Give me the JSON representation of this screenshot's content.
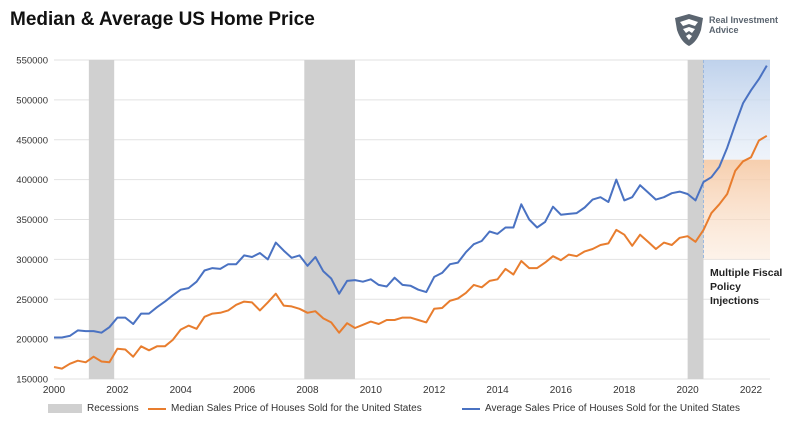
{
  "chart_data": {
    "type": "line",
    "title": "Median & Average US Home Price",
    "brand": "Real Investment Advice",
    "xlim": [
      2000,
      2022.6
    ],
    "ylim": [
      150000,
      550000
    ],
    "x_ticks": [
      2000,
      2002,
      2004,
      2006,
      2008,
      2010,
      2012,
      2014,
      2016,
      2018,
      2020,
      2022
    ],
    "y_ticks": [
      150000,
      200000,
      250000,
      300000,
      350000,
      400000,
      450000,
      500000,
      550000
    ],
    "recessions": [
      {
        "start": 2001.1,
        "end": 2001.9
      },
      {
        "start": 2007.9,
        "end": 2009.5
      },
      {
        "start": 2020.0,
        "end": 2020.5
      }
    ],
    "annotation": "Multiple Fiscal Policy Injections",
    "highlight_start": 2020.5,
    "legend": [
      {
        "label": "Recessions",
        "color": "#d0d0d0",
        "kind": "box"
      },
      {
        "label": "Median Sales Price of Houses Sold for the United States",
        "color": "#e87d2e",
        "kind": "line"
      },
      {
        "label": "Average Sales Price of Houses Sold for the United States",
        "color": "#4a72c2",
        "kind": "line"
      }
    ],
    "series": [
      {
        "name": "Median Sales Price of Houses Sold for the United States",
        "color": "#e87d2e",
        "x": [
          2000.0,
          2000.25,
          2000.5,
          2000.75,
          2001.0,
          2001.25,
          2001.5,
          2001.75,
          2002.0,
          2002.25,
          2002.5,
          2002.75,
          2003.0,
          2003.25,
          2003.5,
          2003.75,
          2004.0,
          2004.25,
          2004.5,
          2004.75,
          2005.0,
          2005.25,
          2005.5,
          2005.75,
          2006.0,
          2006.25,
          2006.5,
          2006.75,
          2007.0,
          2007.25,
          2007.5,
          2007.75,
          2008.0,
          2008.25,
          2008.5,
          2008.75,
          2009.0,
          2009.25,
          2009.5,
          2009.75,
          2010.0,
          2010.25,
          2010.5,
          2010.75,
          2011.0,
          2011.25,
          2011.5,
          2011.75,
          2012.0,
          2012.25,
          2012.5,
          2012.75,
          2013.0,
          2013.25,
          2013.5,
          2013.75,
          2014.0,
          2014.25,
          2014.5,
          2014.75,
          2015.0,
          2015.25,
          2015.5,
          2015.75,
          2016.0,
          2016.25,
          2016.5,
          2016.75,
          2017.0,
          2017.25,
          2017.5,
          2017.75,
          2018.0,
          2018.25,
          2018.5,
          2018.75,
          2019.0,
          2019.25,
          2019.5,
          2019.75,
          2020.0,
          2020.25,
          2020.5,
          2020.75,
          2021.0,
          2021.25,
          2021.5,
          2021.75,
          2022.0,
          2022.25,
          2022.5
        ],
        "y": [
          165000,
          163000,
          169000,
          173000,
          171000,
          178000,
          172000,
          171000,
          188000,
          187000,
          178000,
          191000,
          186000,
          191000,
          191000,
          199000,
          212000,
          217000,
          213000,
          228000,
          232000,
          233000,
          236000,
          243000,
          247000,
          246000,
          236000,
          246000,
          257000,
          242000,
          241000,
          238000,
          233000,
          235000,
          226000,
          221000,
          208000,
          220000,
          214000,
          218000,
          222000,
          219000,
          224000,
          224000,
          227000,
          227000,
          224000,
          221000,
          238000,
          239000,
          248000,
          251000,
          258000,
          268000,
          265000,
          273000,
          275000,
          288000,
          281000,
          298000,
          289000,
          289000,
          296000,
          304000,
          299000,
          306000,
          304000,
          310000,
          313000,
          318000,
          320000,
          337000,
          331000,
          317000,
          331000,
          322000,
          313000,
          321000,
          318000,
          327000,
          329000,
          322000,
          337000,
          358000,
          369000,
          382000,
          411000,
          423000,
          428000,
          449000,
          455000
        ]
      },
      {
        "name": "Average Sales Price of Houses Sold for the United States",
        "color": "#4a72c2",
        "x": [
          2000.0,
          2000.25,
          2000.5,
          2000.75,
          2001.0,
          2001.25,
          2001.5,
          2001.75,
          2002.0,
          2002.25,
          2002.5,
          2002.75,
          2003.0,
          2003.25,
          2003.5,
          2003.75,
          2004.0,
          2004.25,
          2004.5,
          2004.75,
          2005.0,
          2005.25,
          2005.5,
          2005.75,
          2006.0,
          2006.25,
          2006.5,
          2006.75,
          2007.0,
          2007.25,
          2007.5,
          2007.75,
          2008.0,
          2008.25,
          2008.5,
          2008.75,
          2009.0,
          2009.25,
          2009.5,
          2009.75,
          2010.0,
          2010.25,
          2010.5,
          2010.75,
          2011.0,
          2011.25,
          2011.5,
          2011.75,
          2012.0,
          2012.25,
          2012.5,
          2012.75,
          2013.0,
          2013.25,
          2013.5,
          2013.75,
          2014.0,
          2014.25,
          2014.5,
          2014.75,
          2015.0,
          2015.25,
          2015.5,
          2015.75,
          2016.0,
          2016.25,
          2016.5,
          2016.75,
          2017.0,
          2017.25,
          2017.5,
          2017.75,
          2018.0,
          2018.25,
          2018.5,
          2018.75,
          2019.0,
          2019.25,
          2019.5,
          2019.75,
          2020.0,
          2020.25,
          2020.5,
          2020.75,
          2021.0,
          2021.25,
          2021.5,
          2021.75,
          2022.0,
          2022.25,
          2022.5
        ],
        "y": [
          202000,
          202000,
          204000,
          211000,
          210000,
          210000,
          208000,
          215000,
          227000,
          227000,
          219000,
          232000,
          232000,
          240000,
          247000,
          255000,
          262000,
          264000,
          272000,
          286000,
          289000,
          288000,
          294000,
          294000,
          305000,
          303000,
          308000,
          300000,
          321000,
          311000,
          302000,
          305000,
          292000,
          303000,
          285000,
          276000,
          257000,
          273000,
          274000,
          272000,
          275000,
          268000,
          266000,
          277000,
          268000,
          267000,
          262000,
          259000,
          278000,
          283000,
          294000,
          296000,
          309000,
          319000,
          323000,
          335000,
          332000,
          340000,
          340000,
          369000,
          350000,
          340000,
          347000,
          366000,
          356000,
          357000,
          358000,
          365000,
          375000,
          378000,
          372000,
          400000,
          374000,
          378000,
          393000,
          384000,
          375000,
          378000,
          383000,
          385000,
          382000,
          374000,
          397000,
          403000,
          416000,
          440000,
          469000,
          496000,
          512000,
          526000,
          543000
        ]
      }
    ]
  }
}
